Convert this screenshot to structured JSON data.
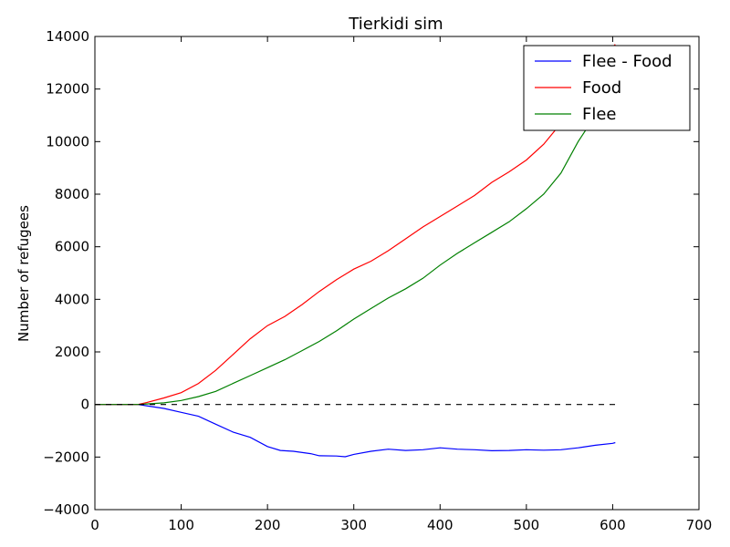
{
  "chart_data": {
    "type": "line",
    "title": "Tierkidi sim",
    "xlabel": "",
    "ylabel": "Number of refugees",
    "xlim": [
      0,
      700
    ],
    "ylim": [
      -4000,
      14000
    ],
    "x_ticks": [
      0,
      100,
      200,
      300,
      400,
      500,
      600,
      700
    ],
    "y_ticks": [
      -4000,
      -2000,
      0,
      2000,
      4000,
      6000,
      8000,
      10000,
      12000,
      14000
    ],
    "x_tick_labels": [
      "0",
      "100",
      "200",
      "300",
      "400",
      "500",
      "600",
      "700"
    ],
    "y_tick_labels": [
      "−4000",
      "−2000",
      "0",
      "2000",
      "4000",
      "6000",
      "8000",
      "10000",
      "12000",
      "14000"
    ],
    "grid": false,
    "legend_position": "top-right",
    "series": [
      {
        "name": "Flee - Food",
        "color": "#0000ff",
        "style": "solid",
        "x": [
          0,
          50,
          60,
          80,
          100,
          120,
          140,
          160,
          180,
          200,
          215,
          230,
          250,
          260,
          280,
          290,
          300,
          320,
          340,
          360,
          380,
          400,
          420,
          440,
          460,
          480,
          500,
          520,
          540,
          560,
          580,
          600,
          603
        ],
        "y": [
          0,
          0,
          -50,
          -150,
          -300,
          -450,
          -750,
          -1050,
          -1250,
          -1600,
          -1750,
          -1780,
          -1870,
          -1950,
          -1960,
          -1990,
          -1900,
          -1780,
          -1700,
          -1750,
          -1720,
          -1650,
          -1700,
          -1720,
          -1760,
          -1750,
          -1720,
          -1740,
          -1720,
          -1650,
          -1550,
          -1480,
          -1450
        ]
      },
      {
        "name": "Food",
        "color": "#ff0000",
        "style": "solid",
        "x": [
          0,
          50,
          60,
          80,
          100,
          120,
          140,
          160,
          180,
          200,
          220,
          240,
          260,
          280,
          300,
          320,
          340,
          360,
          380,
          400,
          420,
          440,
          460,
          480,
          500,
          520,
          540,
          560,
          580,
          600,
          603
        ],
        "y": [
          0,
          0,
          70,
          250,
          450,
          800,
          1300,
          1900,
          2500,
          3000,
          3350,
          3800,
          4300,
          4750,
          5150,
          5450,
          5850,
          6300,
          6750,
          7150,
          7550,
          7950,
          8450,
          8850,
          9300,
          9900,
          10700,
          11600,
          12600,
          13600,
          13700
        ]
      },
      {
        "name": "Flee",
        "color": "#008000",
        "style": "solid",
        "x": [
          0,
          50,
          60,
          80,
          100,
          120,
          140,
          160,
          180,
          200,
          220,
          240,
          260,
          280,
          300,
          320,
          340,
          360,
          380,
          400,
          420,
          440,
          460,
          480,
          500,
          520,
          540,
          560,
          580,
          600,
          603
        ],
        "y": [
          0,
          0,
          20,
          60,
          150,
          300,
          500,
          800,
          1100,
          1400,
          1700,
          2050,
          2400,
          2800,
          3250,
          3650,
          4050,
          4400,
          4800,
          5300,
          5750,
          6150,
          6550,
          6950,
          7450,
          8000,
          8800,
          10000,
          11000,
          12000,
          12150
        ]
      },
      {
        "name": "",
        "color": "#000000",
        "style": "dashed",
        "legend": false,
        "x": [
          0,
          603
        ],
        "y": [
          0,
          0
        ]
      }
    ]
  }
}
